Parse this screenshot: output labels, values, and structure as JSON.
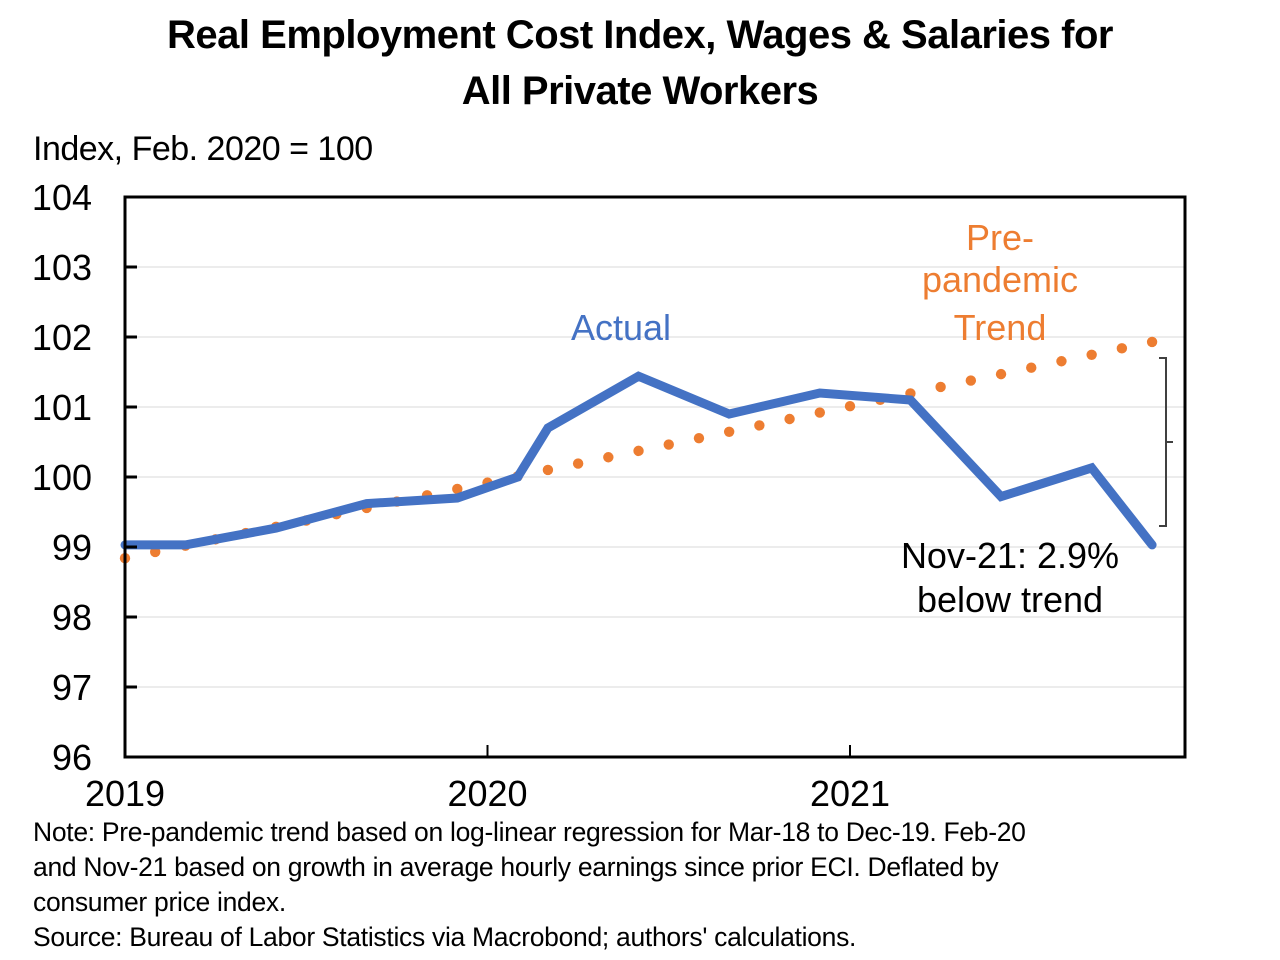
{
  "chart_data": {
    "type": "line",
    "title": "Real Employment  Cost Index, Wages & Salaries for All Private Workers",
    "title_lines": [
      "Real Employment  Cost Index, Wages & Salaries for",
      "All Private Workers"
    ],
    "ylabel": "Index, Feb. 2020 = 100",
    "xlabel": "",
    "ylim": [
      96,
      104
    ],
    "yticks": [
      "96",
      "97",
      "98",
      "99",
      "100",
      "101",
      "102",
      "103",
      "104"
    ],
    "xticks": [
      {
        "label": "2019",
        "month": 0
      },
      {
        "label": "2020",
        "month": 12
      },
      {
        "label": "2021",
        "month": 24
      }
    ],
    "x_unit": "months since Jan 2019",
    "xlim": [
      0,
      35
    ],
    "grid": true,
    "series": [
      {
        "name": "Actual",
        "style": "solid",
        "color": "#4472C4",
        "points": [
          [
            0,
            99.03
          ],
          [
            2,
            99.03
          ],
          [
            5,
            99.27
          ],
          [
            8,
            99.62
          ],
          [
            11,
            99.7
          ],
          [
            13,
            100.0
          ],
          [
            14,
            100.7
          ],
          [
            17,
            101.44
          ],
          [
            20,
            100.9
          ],
          [
            23,
            101.2
          ],
          [
            26,
            101.1
          ],
          [
            29,
            99.72
          ],
          [
            32,
            100.13
          ],
          [
            34,
            99.03
          ]
        ]
      },
      {
        "name": "Pre-pandemic Trend",
        "style": "dotted",
        "color": "#ED7D31",
        "start": [
          0,
          98.84
        ],
        "end": [
          34,
          101.93
        ],
        "step_months": 1
      }
    ],
    "annotations": [
      {
        "text": "Actual",
        "color": "#4472C4"
      },
      {
        "text_lines": [
          "Pre-",
          "pandemic",
          "Trend"
        ],
        "color": "#ED7D31"
      },
      {
        "text_lines": [
          "Nov-21: 2.9%",
          "below trend"
        ],
        "color": "#000000"
      }
    ],
    "bracket": {
      "from_value": 101.7,
      "to_value": 99.3,
      "label": "gap between trend and actual"
    }
  },
  "notes": {
    "lines": [
      "Note: Pre-pandemic trend based on log-linear regression for Mar-18 to Dec-19. Feb-20",
      "and Nov-21 based on growth in average hourly earnings since prior ECI. Deflated by",
      "consumer price index.",
      "Source: Bureau of Labor Statistics via Macrobond; authors' calculations."
    ]
  }
}
